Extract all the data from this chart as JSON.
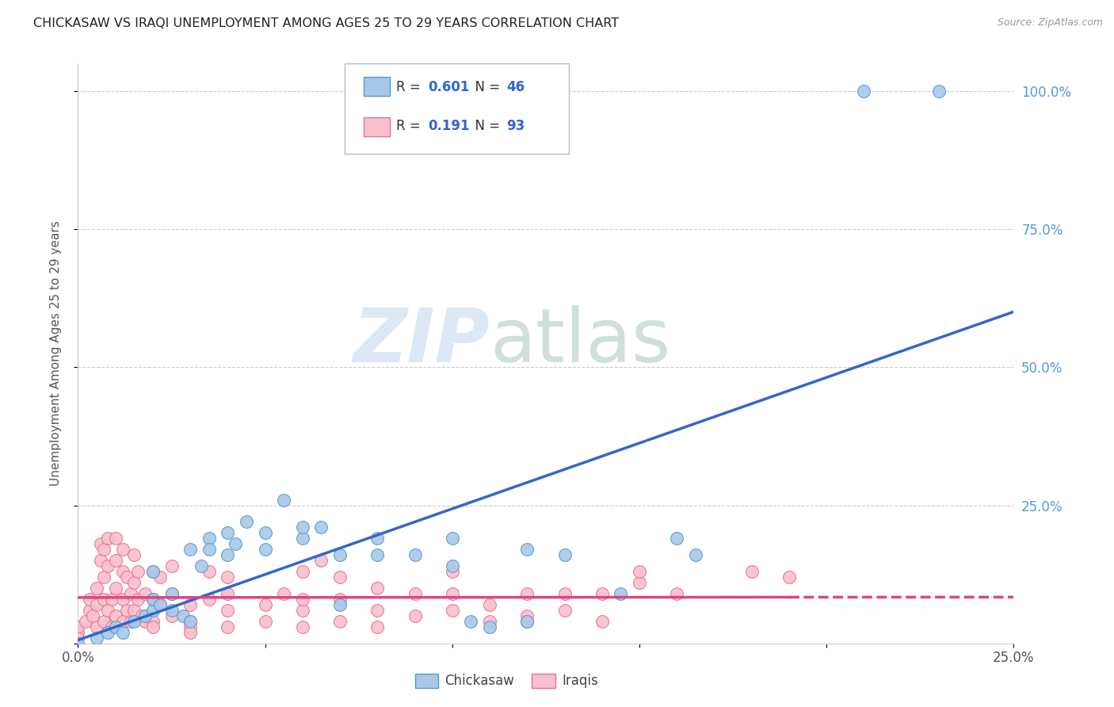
{
  "title": "CHICKASAW VS IRAQI UNEMPLOYMENT AMONG AGES 25 TO 29 YEARS CORRELATION CHART",
  "source": "Source: ZipAtlas.com",
  "ylabel": "Unemployment Among Ages 25 to 29 years",
  "xlim": [
    0.0,
    0.25
  ],
  "ylim": [
    0.0,
    1.05
  ],
  "xticks": [
    0.0,
    0.05,
    0.1,
    0.15,
    0.2,
    0.25
  ],
  "yticks": [
    0.0,
    0.25,
    0.5,
    0.75,
    1.0
  ],
  "xticklabels": [
    "0.0%",
    "",
    "",
    "",
    "",
    "25.0%"
  ],
  "yticklabels_right": [
    "",
    "25.0%",
    "50.0%",
    "75.0%",
    "100.0%"
  ],
  "watermark_zip": "ZIP",
  "watermark_atlas": "atlas",
  "chickasaw_color": "#a8c8e8",
  "chickasaw_edge_color": "#5599cc",
  "iraqi_color": "#f8c0cc",
  "iraqi_edge_color": "#e87090",
  "chickasaw_line_color": "#3366cc",
  "iraqi_line_color": "#dd4488",
  "chickasaw_R": "0.601",
  "iraqi_R": "0.191",
  "chickasaw_N": "46",
  "iraqi_N": "93",
  "chickasaw_scatter": [
    [
      0.0,
      0.0
    ],
    [
      0.005,
      0.01
    ],
    [
      0.008,
      0.02
    ],
    [
      0.01,
      0.03
    ],
    [
      0.012,
      0.02
    ],
    [
      0.015,
      0.04
    ],
    [
      0.018,
      0.05
    ],
    [
      0.02,
      0.06
    ],
    [
      0.02,
      0.08
    ],
    [
      0.02,
      0.13
    ],
    [
      0.022,
      0.07
    ],
    [
      0.025,
      0.09
    ],
    [
      0.025,
      0.06
    ],
    [
      0.028,
      0.05
    ],
    [
      0.03,
      0.04
    ],
    [
      0.03,
      0.17
    ],
    [
      0.033,
      0.14
    ],
    [
      0.035,
      0.19
    ],
    [
      0.035,
      0.17
    ],
    [
      0.04,
      0.2
    ],
    [
      0.04,
      0.16
    ],
    [
      0.042,
      0.18
    ],
    [
      0.045,
      0.22
    ],
    [
      0.05,
      0.2
    ],
    [
      0.05,
      0.17
    ],
    [
      0.055,
      0.26
    ],
    [
      0.06,
      0.19
    ],
    [
      0.06,
      0.21
    ],
    [
      0.065,
      0.21
    ],
    [
      0.07,
      0.16
    ],
    [
      0.07,
      0.07
    ],
    [
      0.08,
      0.19
    ],
    [
      0.08,
      0.16
    ],
    [
      0.09,
      0.16
    ],
    [
      0.1,
      0.19
    ],
    [
      0.1,
      0.14
    ],
    [
      0.105,
      0.04
    ],
    [
      0.11,
      0.03
    ],
    [
      0.12,
      0.17
    ],
    [
      0.12,
      0.04
    ],
    [
      0.13,
      0.16
    ],
    [
      0.145,
      0.09
    ],
    [
      0.16,
      0.19
    ],
    [
      0.165,
      0.16
    ],
    [
      0.21,
      1.0
    ],
    [
      0.23,
      1.0
    ]
  ],
  "iraqi_scatter": [
    [
      0.0,
      0.02
    ],
    [
      0.0,
      0.03
    ],
    [
      0.0,
      0.01
    ],
    [
      0.002,
      0.04
    ],
    [
      0.003,
      0.06
    ],
    [
      0.003,
      0.08
    ],
    [
      0.004,
      0.05
    ],
    [
      0.005,
      0.03
    ],
    [
      0.005,
      0.07
    ],
    [
      0.005,
      0.1
    ],
    [
      0.006,
      0.15
    ],
    [
      0.006,
      0.18
    ],
    [
      0.007,
      0.04
    ],
    [
      0.007,
      0.08
    ],
    [
      0.007,
      0.12
    ],
    [
      0.007,
      0.17
    ],
    [
      0.008,
      0.06
    ],
    [
      0.008,
      0.14
    ],
    [
      0.008,
      0.19
    ],
    [
      0.009,
      0.03
    ],
    [
      0.009,
      0.08
    ],
    [
      0.01,
      0.05
    ],
    [
      0.01,
      0.1
    ],
    [
      0.01,
      0.15
    ],
    [
      0.01,
      0.19
    ],
    [
      0.012,
      0.04
    ],
    [
      0.012,
      0.08
    ],
    [
      0.012,
      0.13
    ],
    [
      0.012,
      0.17
    ],
    [
      0.013,
      0.06
    ],
    [
      0.013,
      0.12
    ],
    [
      0.014,
      0.04
    ],
    [
      0.014,
      0.09
    ],
    [
      0.015,
      0.06
    ],
    [
      0.015,
      0.11
    ],
    [
      0.015,
      0.16
    ],
    [
      0.016,
      0.08
    ],
    [
      0.016,
      0.13
    ],
    [
      0.017,
      0.05
    ],
    [
      0.018,
      0.04
    ],
    [
      0.018,
      0.09
    ],
    [
      0.02,
      0.04
    ],
    [
      0.02,
      0.08
    ],
    [
      0.02,
      0.13
    ],
    [
      0.02,
      0.03
    ],
    [
      0.022,
      0.07
    ],
    [
      0.022,
      0.12
    ],
    [
      0.025,
      0.05
    ],
    [
      0.025,
      0.09
    ],
    [
      0.025,
      0.14
    ],
    [
      0.03,
      0.04
    ],
    [
      0.03,
      0.07
    ],
    [
      0.03,
      0.03
    ],
    [
      0.03,
      0.02
    ],
    [
      0.035,
      0.08
    ],
    [
      0.035,
      0.13
    ],
    [
      0.04,
      0.03
    ],
    [
      0.04,
      0.06
    ],
    [
      0.04,
      0.09
    ],
    [
      0.04,
      0.12
    ],
    [
      0.05,
      0.04
    ],
    [
      0.05,
      0.07
    ],
    [
      0.055,
      0.09
    ],
    [
      0.06,
      0.03
    ],
    [
      0.06,
      0.06
    ],
    [
      0.06,
      0.08
    ],
    [
      0.06,
      0.13
    ],
    [
      0.065,
      0.15
    ],
    [
      0.07,
      0.04
    ],
    [
      0.07,
      0.08
    ],
    [
      0.07,
      0.12
    ],
    [
      0.08,
      0.03
    ],
    [
      0.08,
      0.06
    ],
    [
      0.08,
      0.1
    ],
    [
      0.09,
      0.05
    ],
    [
      0.09,
      0.09
    ],
    [
      0.1,
      0.06
    ],
    [
      0.1,
      0.09
    ],
    [
      0.1,
      0.13
    ],
    [
      0.11,
      0.04
    ],
    [
      0.11,
      0.07
    ],
    [
      0.12,
      0.05
    ],
    [
      0.12,
      0.04
    ],
    [
      0.12,
      0.09
    ],
    [
      0.13,
      0.06
    ],
    [
      0.13,
      0.09
    ],
    [
      0.14,
      0.04
    ],
    [
      0.14,
      0.09
    ],
    [
      0.15,
      0.11
    ],
    [
      0.15,
      0.13
    ],
    [
      0.16,
      0.09
    ],
    [
      0.18,
      0.13
    ],
    [
      0.19,
      0.12
    ]
  ]
}
